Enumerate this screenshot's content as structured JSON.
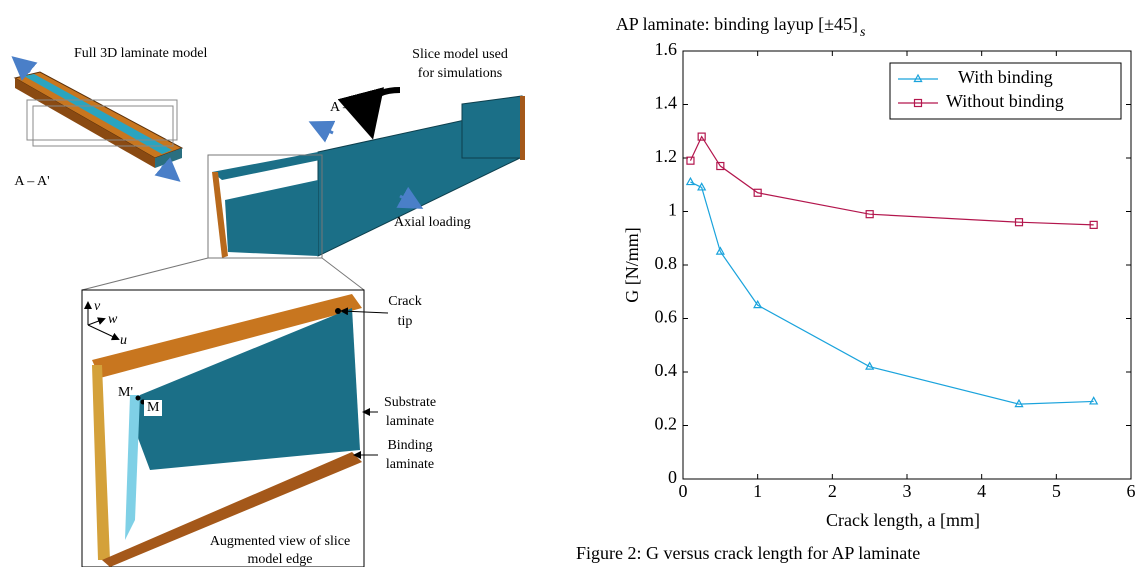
{
  "diagram": {
    "labels": {
      "full_model": "Full 3D laminate model",
      "section_left": "A – A'",
      "section_right": "A – A'",
      "slice_line1": "Slice model used",
      "slice_line2": "for simulations",
      "axial": "Axial loading",
      "crack1": "Crack",
      "crack2": "tip",
      "substrate1": "Substrate",
      "substrate2": "laminate",
      "binding1": "Binding",
      "binding2": "laminate",
      "augmented1": "Augmented view of slice",
      "augmented2": "model edge",
      "m_prime": "M'",
      "m": "M",
      "axis_v": "v",
      "axis_w": "w",
      "axis_u": "u"
    }
  },
  "chart_data": {
    "type": "line",
    "title": "AP laminate: binding layup [±45]",
    "title_subscript": "s",
    "xlabel": "Crack length, a [mm]",
    "ylabel": "G [N/mm]",
    "x": [
      0.1,
      0.25,
      0.5,
      1,
      2.5,
      4.5,
      5.5
    ],
    "series": [
      {
        "name": "With binding",
        "color": "#1aa3dc",
        "marker": "triangle",
        "values": [
          1.11,
          1.09,
          0.85,
          0.65,
          0.42,
          0.28,
          0.29
        ]
      },
      {
        "name": "Without binding",
        "color": "#b3164d",
        "marker": "square",
        "values": [
          1.19,
          1.28,
          1.17,
          1.07,
          0.99,
          0.96,
          0.95
        ]
      }
    ],
    "xlim": [
      0,
      6
    ],
    "xticks": [
      0,
      1,
      2,
      3,
      4,
      5,
      6
    ],
    "ylim": [
      0,
      1.6
    ],
    "yticks": [
      0,
      0.2,
      0.4,
      0.6,
      0.8,
      1,
      1.2,
      1.4,
      1.6
    ],
    "grid": false,
    "legend": "upper right"
  },
  "caption": "Figure 2: G versus crack length for AP laminate"
}
